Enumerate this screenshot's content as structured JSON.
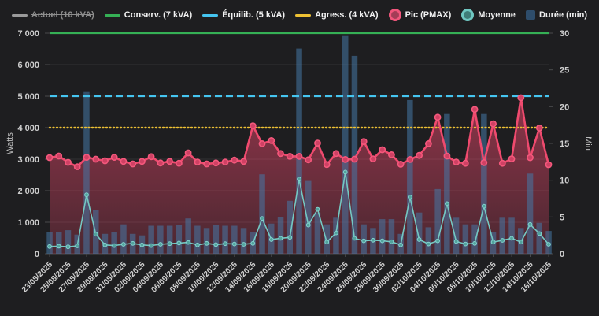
{
  "legend": {
    "items": [
      {
        "label": "Actuel (10 kVA)",
        "marker": "line",
        "color": "#9a9a9a",
        "disabled": true
      },
      {
        "label": "Conserv. (7 kVA)",
        "marker": "line",
        "color": "#35b055",
        "disabled": false
      },
      {
        "label": "Équilib. (5 kVA)",
        "marker": "line",
        "color": "#45c5f0",
        "disabled": false
      },
      {
        "label": "Agress. (4 kVA)",
        "marker": "line",
        "color": "#eec133",
        "disabled": false
      },
      {
        "label": "Pic (PMAX)",
        "marker": "circle",
        "color": "#f2567c",
        "fill": "#a43d57",
        "disabled": false
      },
      {
        "label": "Moyenne",
        "marker": "circle",
        "color": "#6fc7c1",
        "fill": "#3f7d78",
        "disabled": false
      },
      {
        "label": "Durée (min)",
        "marker": "square",
        "color": "#2e4d6b",
        "disabled": false
      }
    ]
  },
  "chart_data": {
    "type": "mixed",
    "x": [
      "23/08/2025",
      "24/08/2025",
      "25/08/2025",
      "26/08/2025",
      "27/08/2025",
      "28/08/2025",
      "29/08/2025",
      "30/08/2025",
      "31/08/2025",
      "01/09/2025",
      "02/09/2025",
      "03/09/2025",
      "04/09/2025",
      "05/09/2025",
      "06/09/2025",
      "07/09/2025",
      "08/09/2025",
      "09/09/2025",
      "10/09/2025",
      "11/09/2025",
      "12/09/2025",
      "13/09/2025",
      "14/09/2025",
      "15/09/2025",
      "16/09/2025",
      "17/09/2025",
      "18/09/2025",
      "19/09/2025",
      "20/09/2025",
      "21/09/2025",
      "22/09/2025",
      "23/09/2025",
      "24/09/2025",
      "25/09/2025",
      "26/09/2025",
      "27/09/2025",
      "28/09/2025",
      "29/09/2025",
      "30/09/2025",
      "01/10/2025",
      "02/10/2025",
      "03/10/2025",
      "04/10/2025",
      "05/10/2025",
      "06/10/2025",
      "07/10/2025",
      "08/10/2025",
      "09/10/2025",
      "10/10/2025",
      "11/10/2025",
      "12/10/2025",
      "13/10/2025",
      "14/10/2025",
      "15/10/2025",
      "16/10/2025"
    ],
    "x_tick_every": 2,
    "y_left": {
      "label": "Watts",
      "min": 0,
      "max": 7000,
      "tick_step": 1000,
      "tick_labels": [
        "0",
        "1 000",
        "2 000",
        "3 000",
        "4 000",
        "5 000",
        "6 000",
        "7 000"
      ]
    },
    "y_right": {
      "label": "Min",
      "min": 0,
      "max": 30,
      "tick_step": 5,
      "tick_labels": [
        "0",
        "5",
        "10",
        "15",
        "20",
        "25",
        "30"
      ]
    },
    "reference_lines": [
      {
        "name": "Conserv. (7 kVA)",
        "watts": 7000,
        "color": "#35b055",
        "dash": "solid"
      },
      {
        "name": "Équilib. (5 kVA)",
        "watts": 5000,
        "color": "#45c5f0",
        "dash": "dashed"
      },
      {
        "name": "Agress. (4 kVA)",
        "watts": 4000,
        "color": "#eec133",
        "dash": "dotted"
      }
    ],
    "series": [
      {
        "name": "Pic (PMAX)",
        "type": "line",
        "axis": "left",
        "color": "#ef4a6e",
        "point_fill": "#cf4164",
        "point_stroke": "#f4587c",
        "area_color": "236,72,108",
        "values": [
          3050,
          3100,
          2900,
          2760,
          3060,
          3000,
          2950,
          3060,
          2930,
          2850,
          2930,
          3080,
          2880,
          2930,
          2870,
          3200,
          2910,
          2850,
          2880,
          2910,
          2970,
          2930,
          4060,
          3490,
          3590,
          3180,
          3090,
          3090,
          2980,
          3510,
          2830,
          3180,
          2990,
          3000,
          3560,
          3010,
          3300,
          3140,
          2840,
          2990,
          3120,
          3490,
          4330,
          3100,
          2910,
          2870,
          4580,
          2890,
          4120,
          2870,
          3010,
          4950,
          3050,
          3990,
          2825
        ]
      },
      {
        "name": "Moyenne",
        "type": "line",
        "axis": "left",
        "color": "#74c8c3",
        "point_fill": "#53a29d",
        "point_stroke": "#84d4cf",
        "values": [
          230,
          240,
          220,
          250,
          1870,
          620,
          280,
          260,
          300,
          330,
          280,
          260,
          300,
          320,
          340,
          360,
          280,
          330,
          290,
          320,
          310,
          300,
          330,
          1120,
          450,
          490,
          520,
          2370,
          910,
          1410,
          370,
          660,
          2590,
          490,
          410,
          430,
          410,
          380,
          280,
          1800,
          450,
          310,
          410,
          1590,
          390,
          310,
          330,
          1510,
          370,
          425,
          490,
          370,
          930,
          640,
          300
        ]
      },
      {
        "name": "Durée (min)",
        "type": "bar",
        "axis": "right",
        "color": "rgba(70,120,165,0.55)",
        "values": [
          2.9,
          2.9,
          3.2,
          2.6,
          22,
          5.9,
          2.7,
          2.9,
          4,
          2.7,
          2.5,
          3.8,
          3.8,
          3.8,
          3.9,
          4.8,
          3.8,
          3.5,
          3.9,
          3.8,
          3.8,
          3.5,
          2.9,
          10.8,
          4.1,
          5,
          7.2,
          27.9,
          9.9,
          5.6,
          4,
          4.9,
          29.6,
          26.9,
          4,
          3.5,
          4.7,
          4.7,
          2.7,
          20.9,
          5.6,
          3.6,
          8.8,
          19,
          4.9,
          4,
          4,
          19,
          2.9,
          4.9,
          4.9,
          3.5,
          10.9,
          4.2,
          3.1
        ]
      }
    ],
    "colors": {
      "background": "#1e1e20",
      "grid": "#323234",
      "zero_line": "#4a4b4d",
      "tick_text": "#cfcfcf",
      "axis_title": "#bdbdbd"
    }
  }
}
